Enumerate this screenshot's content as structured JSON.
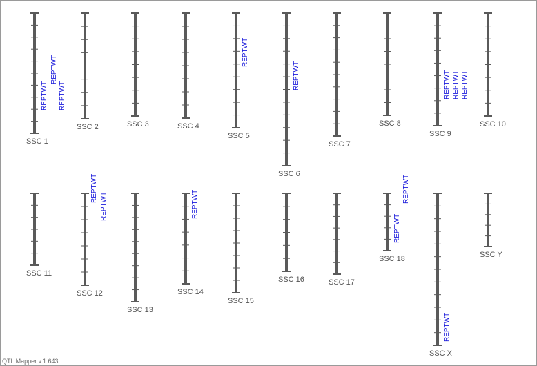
{
  "footer": "QTL Mapper v.1.643",
  "colors": {
    "chromosome": "#5a5a5a",
    "qtl_label": "#1a1adb",
    "chrom_label": "#555555"
  },
  "chromosomes": [
    {
      "name": "SSC 1",
      "ticks": 9,
      "qtls": [
        "REPTWT",
        "REPTWT",
        "REPTWT"
      ]
    },
    {
      "name": "SSC 2",
      "ticks": 7,
      "qtls": []
    },
    {
      "name": "SSC 3",
      "ticks": 7,
      "qtls": []
    },
    {
      "name": "SSC 4",
      "ticks": 7,
      "qtls": []
    },
    {
      "name": "SSC 5",
      "ticks": 8,
      "qtls": [
        "REPTWT"
      ]
    },
    {
      "name": "SSC 6",
      "ticks": 11,
      "qtls": [
        "REPTWT"
      ]
    },
    {
      "name": "SSC 7",
      "ticks": 9,
      "qtls": []
    },
    {
      "name": "SSC 8",
      "ticks": 7,
      "qtls": []
    },
    {
      "name": "SSC 9",
      "ticks": 8,
      "qtls": [
        "REPTWT",
        "REPTWT",
        "REPTWT"
      ]
    },
    {
      "name": "SSC 10",
      "ticks": 7,
      "qtls": []
    },
    {
      "name": "SSC 11",
      "ticks": 5,
      "qtls": []
    },
    {
      "name": "SSC 12",
      "ticks": 6,
      "qtls": [
        "REPTWT",
        "REPTWT"
      ]
    },
    {
      "name": "SSC 13",
      "ticks": 8,
      "qtls": []
    },
    {
      "name": "SSC 14",
      "ticks": 6,
      "qtls": [
        "REPTWT"
      ]
    },
    {
      "name": "SSC 15",
      "ticks": 7,
      "qtls": []
    },
    {
      "name": "SSC 16",
      "ticks": 5,
      "qtls": []
    },
    {
      "name": "SSC 17",
      "ticks": 6,
      "qtls": []
    },
    {
      "name": "SSC 18",
      "ticks": 4,
      "qtls": [
        "REPTWT",
        "REPTWT"
      ]
    },
    {
      "name": "SSC X",
      "ticks": 11,
      "qtls": [
        "REPTWT"
      ]
    },
    {
      "name": "SSC Y",
      "ticks": 4,
      "qtls": []
    }
  ]
}
